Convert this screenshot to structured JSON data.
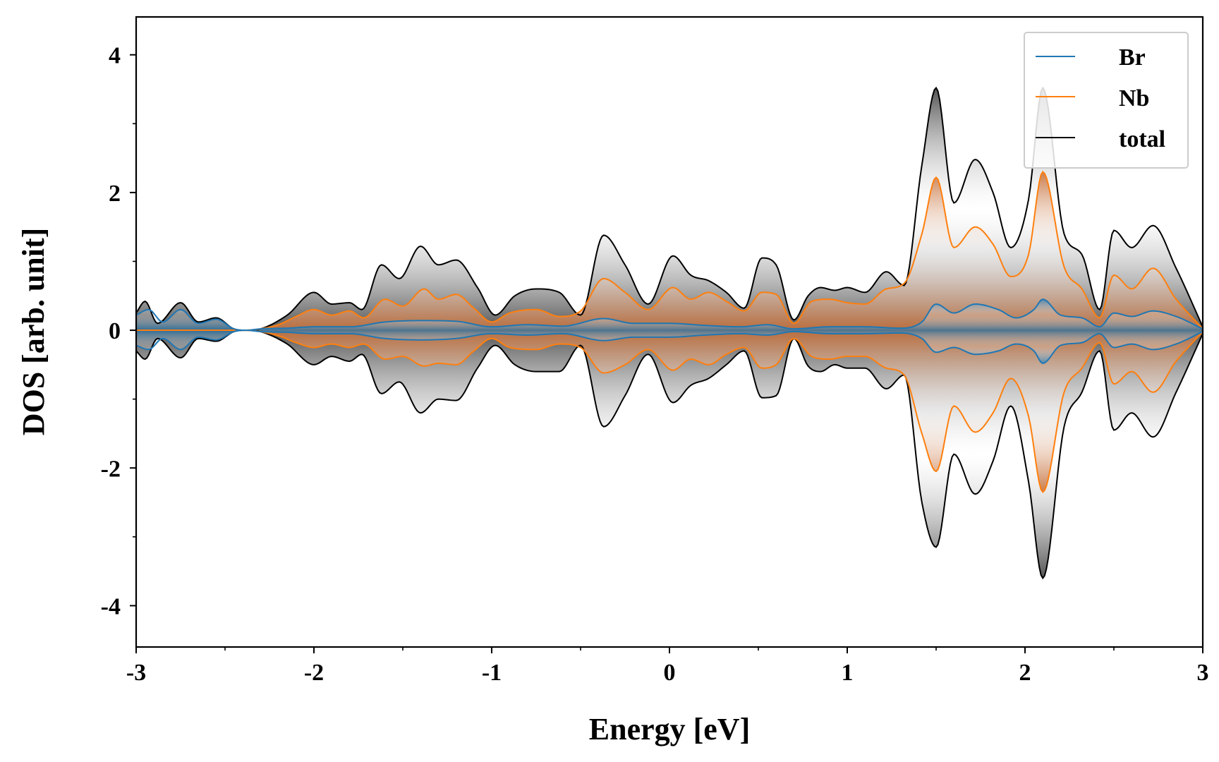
{
  "chart_data": {
    "type": "line",
    "title": "",
    "xlabel": "Energy [eV]",
    "ylabel": "DOS [arb. unit]",
    "xlim": [
      -3,
      3
    ],
    "ylim": [
      -4.6,
      4.55
    ],
    "x_ticks": [
      -3,
      -2,
      -1,
      0,
      1,
      2,
      3
    ],
    "x_tick_labels": [
      "-3",
      "-2",
      "-1",
      "0",
      "1",
      "2",
      "3"
    ],
    "y_ticks": [
      -4,
      -2,
      0,
      2,
      4
    ],
    "y_tick_labels": [
      "-4",
      "-2",
      "0",
      "2",
      "4"
    ],
    "grid": false,
    "legend_position": "top-right",
    "fill_under_curves": true,
    "mirrored_spin_channels": true,
    "series": [
      {
        "name": "Br",
        "color": "#1f77b4",
        "x": [
          -3.0,
          -2.93,
          -2.85,
          -2.75,
          -2.65,
          -2.55,
          -2.45,
          -2.38,
          -2.3,
          -2.15,
          -2.0,
          -1.8,
          -1.6,
          -1.4,
          -1.2,
          -1.0,
          -0.8,
          -0.6,
          -0.37,
          -0.2,
          0.0,
          0.2,
          0.4,
          0.55,
          0.7,
          0.9,
          1.1,
          1.3,
          1.42,
          1.5,
          1.6,
          1.72,
          1.85,
          1.95,
          2.05,
          2.1,
          2.2,
          2.32,
          2.42,
          2.5,
          2.6,
          2.72,
          2.85,
          3.0
        ],
        "up": [
          0.22,
          0.3,
          0.12,
          0.3,
          0.1,
          0.16,
          0.02,
          0.0,
          0.02,
          0.03,
          0.05,
          0.05,
          0.12,
          0.14,
          0.13,
          0.05,
          0.08,
          0.06,
          0.17,
          0.1,
          0.1,
          0.07,
          0.05,
          0.08,
          0.02,
          0.05,
          0.05,
          0.03,
          0.12,
          0.38,
          0.25,
          0.38,
          0.3,
          0.18,
          0.3,
          0.45,
          0.22,
          0.18,
          0.05,
          0.25,
          0.2,
          0.28,
          0.2,
          0.02
        ],
        "down": [
          -0.22,
          -0.28,
          -0.12,
          -0.28,
          -0.1,
          -0.14,
          -0.02,
          0.0,
          -0.02,
          -0.03,
          -0.05,
          -0.05,
          -0.12,
          -0.14,
          -0.12,
          -0.05,
          -0.07,
          -0.05,
          -0.15,
          -0.1,
          -0.1,
          -0.07,
          -0.05,
          -0.07,
          -0.02,
          -0.05,
          -0.05,
          -0.04,
          -0.12,
          -0.32,
          -0.25,
          -0.35,
          -0.3,
          -0.2,
          -0.3,
          -0.48,
          -0.22,
          -0.18,
          -0.05,
          -0.25,
          -0.2,
          -0.28,
          -0.2,
          -0.02
        ]
      },
      {
        "name": "Nb",
        "color": "#ff7f0e",
        "x": [
          -3.0,
          -2.8,
          -2.6,
          -2.4,
          -2.3,
          -2.2,
          -2.1,
          -2.0,
          -1.9,
          -1.8,
          -1.72,
          -1.6,
          -1.5,
          -1.38,
          -1.3,
          -1.2,
          -1.1,
          -1.0,
          -0.9,
          -0.75,
          -0.62,
          -0.5,
          -0.37,
          -0.25,
          -0.12,
          0.02,
          0.12,
          0.22,
          0.32,
          0.42,
          0.52,
          0.6,
          0.7,
          0.8,
          0.9,
          1.0,
          1.1,
          1.22,
          1.32,
          1.42,
          1.5,
          1.6,
          1.72,
          1.82,
          1.92,
          2.02,
          2.1,
          2.22,
          2.32,
          2.42,
          2.5,
          2.6,
          2.72,
          2.85,
          3.0
        ],
        "up": [
          0.0,
          0.0,
          0.0,
          0.0,
          0.02,
          0.08,
          0.2,
          0.3,
          0.22,
          0.28,
          0.18,
          0.45,
          0.35,
          0.6,
          0.45,
          0.52,
          0.32,
          0.12,
          0.25,
          0.3,
          0.2,
          0.28,
          0.75,
          0.55,
          0.3,
          0.62,
          0.45,
          0.55,
          0.42,
          0.28,
          0.55,
          0.52,
          0.1,
          0.42,
          0.45,
          0.4,
          0.38,
          0.6,
          0.68,
          1.4,
          2.22,
          1.2,
          1.5,
          1.25,
          0.78,
          1.1,
          2.3,
          0.92,
          0.6,
          0.18,
          0.8,
          0.6,
          0.9,
          0.45,
          0.02
        ],
        "down": [
          0.0,
          0.0,
          0.0,
          0.0,
          -0.02,
          -0.08,
          -0.18,
          -0.25,
          -0.2,
          -0.25,
          -0.2,
          -0.42,
          -0.38,
          -0.52,
          -0.48,
          -0.5,
          -0.3,
          -0.12,
          -0.25,
          -0.28,
          -0.2,
          -0.25,
          -0.62,
          -0.5,
          -0.28,
          -0.58,
          -0.42,
          -0.5,
          -0.35,
          -0.25,
          -0.55,
          -0.5,
          -0.12,
          -0.38,
          -0.42,
          -0.38,
          -0.38,
          -0.55,
          -0.65,
          -1.5,
          -2.05,
          -1.1,
          -1.48,
          -1.2,
          -0.7,
          -1.25,
          -2.35,
          -0.9,
          -0.55,
          -0.18,
          -0.78,
          -0.6,
          -0.9,
          -0.45,
          -0.02
        ]
      },
      {
        "name": "total",
        "color": "#000000",
        "x": [
          -3.0,
          -2.95,
          -2.88,
          -2.75,
          -2.65,
          -2.55,
          -2.45,
          -2.38,
          -2.3,
          -2.15,
          -2.0,
          -1.9,
          -1.8,
          -1.73,
          -1.62,
          -1.52,
          -1.4,
          -1.3,
          -1.2,
          -1.08,
          -0.98,
          -0.87,
          -0.75,
          -0.62,
          -0.5,
          -0.37,
          -0.25,
          -0.12,
          0.02,
          0.12,
          0.22,
          0.32,
          0.42,
          0.52,
          0.6,
          0.7,
          0.78,
          0.85,
          0.93,
          1.0,
          1.1,
          1.22,
          1.32,
          1.42,
          1.5,
          1.6,
          1.72,
          1.82,
          1.92,
          2.02,
          2.1,
          2.22,
          2.32,
          2.42,
          2.5,
          2.6,
          2.72,
          2.85,
          3.0
        ],
        "up": [
          0.25,
          0.42,
          0.1,
          0.4,
          0.12,
          0.18,
          0.02,
          0.0,
          0.02,
          0.22,
          0.55,
          0.38,
          0.4,
          0.3,
          0.95,
          0.75,
          1.22,
          0.95,
          1.02,
          0.62,
          0.22,
          0.5,
          0.6,
          0.55,
          0.22,
          1.38,
          0.95,
          0.38,
          1.08,
          0.8,
          0.72,
          0.55,
          0.32,
          1.05,
          0.95,
          0.15,
          0.5,
          0.62,
          0.58,
          0.62,
          0.55,
          0.85,
          0.65,
          2.4,
          3.52,
          1.85,
          2.48,
          2.0,
          1.2,
          1.9,
          3.52,
          1.4,
          1.1,
          0.3,
          1.45,
          1.2,
          1.52,
          0.9,
          0.05
        ],
        "down": [
          -0.3,
          -0.42,
          -0.12,
          -0.4,
          -0.12,
          -0.16,
          -0.02,
          0.0,
          -0.02,
          -0.2,
          -0.5,
          -0.38,
          -0.45,
          -0.35,
          -0.92,
          -0.75,
          -1.2,
          -1.0,
          -1.02,
          -0.55,
          -0.22,
          -0.5,
          -0.6,
          -0.6,
          -0.22,
          -1.4,
          -0.95,
          -0.35,
          -1.05,
          -0.8,
          -0.7,
          -0.5,
          -0.3,
          -0.98,
          -0.95,
          -0.12,
          -0.52,
          -0.6,
          -0.5,
          -0.55,
          -0.55,
          -0.85,
          -0.65,
          -2.5,
          -3.15,
          -1.8,
          -2.38,
          -1.9,
          -1.1,
          -2.2,
          -3.6,
          -1.4,
          -0.9,
          -0.3,
          -1.45,
          -1.2,
          -1.55,
          -0.9,
          -0.05
        ]
      }
    ]
  }
}
